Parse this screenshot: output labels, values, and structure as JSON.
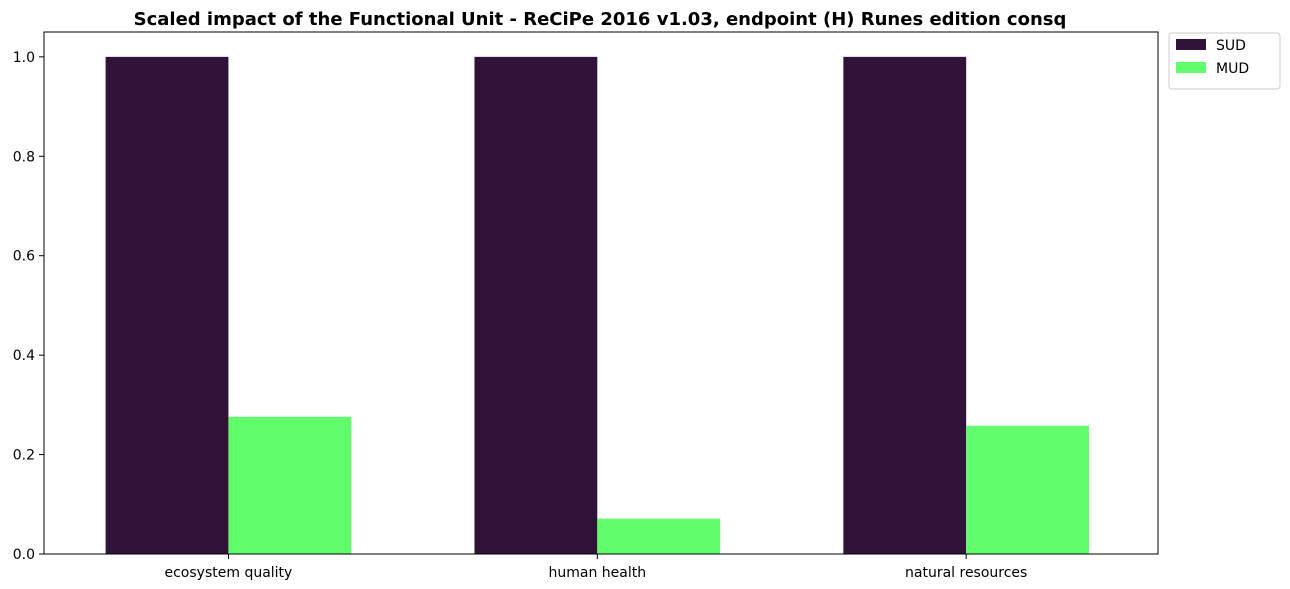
{
  "chart_data": {
    "type": "bar",
    "title": "Scaled impact of the Functional Unit - ReCiPe 2016 v1.03, endpoint (H) Runes edition consq",
    "xlabel": "",
    "ylabel": "",
    "categories": [
      "ecosystem quality",
      "human health",
      "natural resources"
    ],
    "series": [
      {
        "name": "SUD",
        "color": "#311339",
        "values": [
          1.0,
          1.0,
          1.0
        ]
      },
      {
        "name": "MUD",
        "color": "#62fd6a",
        "values": [
          0.276,
          0.071,
          0.258
        ]
      }
    ],
    "ylim": [
      0,
      1.05
    ],
    "yticks": [
      0.0,
      0.2,
      0.4,
      0.6,
      0.8,
      1.0
    ],
    "ytick_labels": [
      "0.0",
      "0.2",
      "0.4",
      "0.6",
      "0.8",
      "1.0"
    ],
    "grid": false,
    "legend_position": "outside-top-right"
  }
}
